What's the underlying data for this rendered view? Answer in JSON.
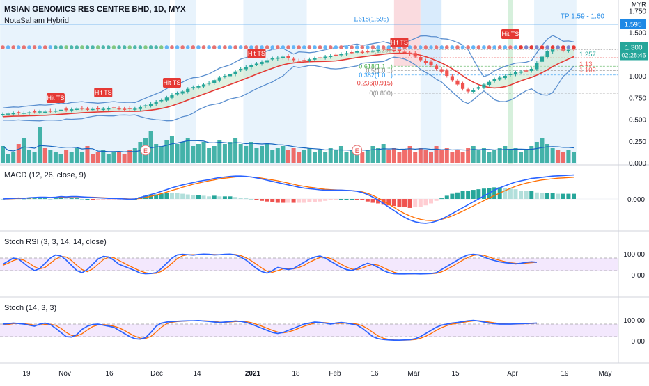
{
  "header": {
    "symbol_title": "MSIAN GENOMICS RES CENTRE BHD, 1D, MYX",
    "indicator_title": "NotaSaham Hybrid"
  },
  "annotations": {
    "tp_label": "TP 1.59 - 1.60",
    "fib_top_label": "1.618(1.595)",
    "hit_ts_label": "Hit TS",
    "earnings_marker": "E",
    "pivot_label": "1(1.299)"
  },
  "price_scale": {
    "currency": "MYR",
    "ticks": [
      "1.750",
      "1.500",
      "1.000",
      "0.750",
      "0.500",
      "0.250",
      "0.000"
    ],
    "current_price": "1.300",
    "countdown": "02:28:46",
    "level_1595": "1.595",
    "level_1257": "1.257",
    "level_113": "1.13",
    "level_1102": "1.102"
  },
  "fib_levels": [
    "0.618(1.1...)",
    "0.5(1.0...)",
    "0.382(1.0...)",
    "0.236(0.915)",
    "0(0.800)"
  ],
  "colors": {
    "up": "#26a69a",
    "down": "#ef5350",
    "macd": "#2962ff",
    "signal": "#ff6d00",
    "resistance": "#1e88e5",
    "bb_band": "#5b8fcf",
    "ts_line": "#e53935",
    "bg_zone": "#e3f2fd",
    "sell_zone": "#f8bbd0",
    "pane_fill": "#f3e8fd"
  },
  "chart_data": [
    {
      "type": "candlestick",
      "title": "MSIAN GENOMICS RES CENTRE BHD, 1D, MYX",
      "ylabel": "MYR",
      "ylim": [
        0,
        1.8
      ],
      "x_ticks": [
        "19",
        "Nov",
        "16",
        "Dec",
        "14",
        "2021",
        "18",
        "Feb",
        "16",
        "Mar",
        "15",
        "Apr",
        "19",
        "May"
      ],
      "close": [
        0.56,
        0.565,
        0.57,
        0.568,
        0.575,
        0.58,
        0.585,
        0.59,
        0.588,
        0.592,
        0.6,
        0.61,
        0.605,
        0.615,
        0.62,
        0.625,
        0.62,
        0.618,
        0.615,
        0.62,
        0.625,
        0.63,
        0.625,
        0.62,
        0.618,
        0.622,
        0.64,
        0.66,
        0.68,
        0.7,
        0.72,
        0.75,
        0.78,
        0.8,
        0.82,
        0.85,
        0.87,
        0.88,
        0.9,
        0.92,
        0.95,
        0.98,
        1.0,
        1.02,
        1.05,
        1.08,
        1.1,
        1.12,
        1.14,
        1.16,
        1.18,
        1.2,
        1.21,
        1.22,
        1.2,
        1.18,
        1.17,
        1.18,
        1.19,
        1.2,
        1.21,
        1.22,
        1.23,
        1.24,
        1.25,
        1.26,
        1.27,
        1.28,
        1.27,
        1.28,
        1.29,
        1.3,
        1.31,
        1.3,
        1.29,
        1.28,
        1.27,
        1.25,
        1.22,
        1.18,
        1.15,
        1.12,
        1.08,
        1.05,
        1.0,
        0.95,
        0.9,
        0.85,
        0.82,
        0.84,
        0.87,
        0.9,
        0.93,
        0.96,
        0.98,
        1.0,
        1.02,
        1.04,
        1.05,
        1.06,
        1.08,
        1.15,
        1.22,
        1.28,
        1.32,
        1.31,
        1.29,
        1.3,
        1.3
      ],
      "volume": [
        0.08,
        0.04,
        0.05,
        0.09,
        0.12,
        0.06,
        0.05,
        0.17,
        0.07,
        0.06,
        0.05,
        0.04,
        0.06,
        0.05,
        0.07,
        0.05,
        0.08,
        0.04,
        0.05,
        0.06,
        0.04,
        0.05,
        0.05,
        0.04,
        0.06,
        0.07,
        0.1,
        0.12,
        0.15,
        0.09,
        0.08,
        0.11,
        0.13,
        0.09,
        0.1,
        0.12,
        0.08,
        0.09,
        0.1,
        0.07,
        0.08,
        0.11,
        0.09,
        0.1,
        0.12,
        0.09,
        0.08,
        0.1,
        0.07,
        0.08,
        0.09,
        0.06,
        0.07,
        0.08,
        0.06,
        0.07,
        0.05,
        0.06,
        0.07,
        0.05,
        0.06,
        0.05,
        0.07,
        0.06,
        0.08,
        0.05,
        0.06,
        0.07,
        0.05,
        0.06,
        0.08,
        0.07,
        0.09,
        0.06,
        0.07,
        0.05,
        0.06,
        0.08,
        0.05,
        0.07,
        0.06,
        0.05,
        0.08,
        0.06,
        0.07,
        0.05,
        0.06,
        0.05,
        0.07,
        0.08,
        0.06,
        0.07,
        0.05,
        0.06,
        0.07,
        0.08,
        0.06,
        0.07,
        0.05,
        0.06,
        0.08,
        0.1,
        0.12,
        0.09,
        0.07,
        0.06,
        0.05,
        0.06,
        0.05
      ],
      "series": [
        {
          "name": "Resistance",
          "values": [
            1.595
          ]
        },
        {
          "name": "Fibonacci 1.618",
          "values": [
            1.595
          ]
        },
        {
          "name": "Fibonacci 1",
          "values": [
            1.299
          ]
        },
        {
          "name": "Fibonacci 0.236",
          "values": [
            0.915
          ]
        },
        {
          "name": "Fibonacci 0",
          "values": [
            0.8
          ]
        }
      ]
    },
    {
      "type": "line",
      "title": "MACD (12, 26, close, 9)",
      "x_ticks": [
        "19",
        "Nov",
        "16",
        "Dec",
        "14",
        "2021",
        "18",
        "Feb",
        "16",
        "Mar",
        "15",
        "Apr",
        "19",
        "May"
      ],
      "y_ticks": [
        "0.000"
      ],
      "ylim": [
        -0.12,
        0.12
      ],
      "series": [
        {
          "name": "MACD",
          "values": [
            0.0,
            0.001,
            0.002,
            0.003,
            0.002,
            0.004,
            0.005,
            0.006,
            0.006,
            0.005,
            0.006,
            0.008,
            0.007,
            0.008,
            0.008,
            0.007,
            0.006,
            0.005,
            0.004,
            0.003,
            0.002,
            0.002,
            0.001,
            0.0,
            -0.001,
            0.0,
            0.005,
            0.01,
            0.015,
            0.02,
            0.026,
            0.032,
            0.038,
            0.043,
            0.048,
            0.052,
            0.056,
            0.06,
            0.063,
            0.066,
            0.07,
            0.073,
            0.075,
            0.077,
            0.078,
            0.078,
            0.077,
            0.075,
            0.072,
            0.068,
            0.064,
            0.06,
            0.056,
            0.052,
            0.048,
            0.044,
            0.04,
            0.037,
            0.035,
            0.033,
            0.031,
            0.03,
            0.03,
            0.03,
            0.03,
            0.029,
            0.028,
            0.026,
            0.022,
            0.015,
            0.006,
            -0.004,
            -0.016,
            -0.028,
            -0.04,
            -0.052,
            -0.063,
            -0.072,
            -0.078,
            -0.082,
            -0.083,
            -0.081,
            -0.076,
            -0.069,
            -0.06,
            -0.05,
            -0.04,
            -0.03,
            -0.02,
            -0.01,
            0.0,
            0.01,
            0.02,
            0.03,
            0.038,
            0.045,
            0.052,
            0.058,
            0.062,
            0.066,
            0.07,
            0.072,
            0.074,
            0.076,
            0.078,
            0.079,
            0.08,
            0.081,
            0.082
          ]
        },
        {
          "name": "Signal",
          "values": [
            0.0,
            0.0,
            0.001,
            0.002,
            0.002,
            0.003,
            0.004,
            0.005,
            0.005,
            0.005,
            0.005,
            0.006,
            0.006,
            0.007,
            0.007,
            0.007,
            0.006,
            0.006,
            0.005,
            0.004,
            0.003,
            0.003,
            0.002,
            0.001,
            0.0,
            0.0,
            0.002,
            0.005,
            0.009,
            0.013,
            0.018,
            0.023,
            0.029,
            0.034,
            0.04,
            0.045,
            0.05,
            0.054,
            0.058,
            0.062,
            0.065,
            0.069,
            0.071,
            0.073,
            0.075,
            0.076,
            0.076,
            0.075,
            0.074,
            0.071,
            0.068,
            0.065,
            0.062,
            0.058,
            0.054,
            0.05,
            0.046,
            0.043,
            0.04,
            0.038,
            0.035,
            0.033,
            0.032,
            0.031,
            0.03,
            0.029,
            0.028,
            0.027,
            0.024,
            0.019,
            0.012,
            0.003,
            -0.007,
            -0.018,
            -0.029,
            -0.04,
            -0.05,
            -0.058,
            -0.065,
            -0.07,
            -0.073,
            -0.074,
            -0.073,
            -0.07,
            -0.065,
            -0.058,
            -0.05,
            -0.042,
            -0.033,
            -0.024,
            -0.015,
            -0.006,
            0.003,
            0.012,
            0.02,
            0.028,
            0.036,
            0.043,
            0.049,
            0.054,
            0.058,
            0.062,
            0.065,
            0.067,
            0.069,
            0.071,
            0.072,
            0.073,
            0.074
          ]
        }
      ]
    },
    {
      "type": "line",
      "title": "Stoch RSI (3, 3, 14, 14, close)",
      "x_ticks": [
        "19",
        "Nov",
        "16",
        "Dec",
        "14",
        "2021",
        "18",
        "Feb",
        "16",
        "Mar",
        "15",
        "Apr",
        "19",
        "May"
      ],
      "y_ticks": [
        "100.00",
        "0.00"
      ],
      "ylim": [
        -20,
        120
      ],
      "series": [
        {
          "name": "K",
          "values": [
            50,
            65,
            80,
            75,
            55,
            35,
            20,
            30,
            55,
            80,
            95,
            90,
            70,
            45,
            20,
            10,
            25,
            50,
            75,
            88,
            85,
            70,
            50,
            40,
            30,
            20,
            8,
            5,
            6,
            10,
            30,
            55,
            80,
            95,
            98,
            96,
            94,
            97,
            99,
            98,
            95,
            96,
            98,
            99,
            95,
            85,
            70,
            50,
            30,
            15,
            8,
            20,
            35,
            30,
            25,
            30,
            45,
            60,
            75,
            85,
            90,
            80,
            65,
            50,
            35,
            25,
            20,
            30,
            45,
            55,
            48,
            35,
            20,
            10,
            5,
            4,
            4,
            5,
            5,
            4,
            5,
            6,
            10,
            25,
            40,
            55,
            70,
            85,
            95,
            98,
            95,
            85,
            75,
            68,
            62,
            58,
            55,
            52,
            55,
            60,
            62,
            60
          ]
        },
        {
          "name": "D",
          "values": [
            45,
            55,
            68,
            76,
            70,
            55,
            38,
            28,
            35,
            55,
            75,
            88,
            85,
            68,
            45,
            25,
            15,
            28,
            50,
            72,
            85,
            82,
            68,
            55,
            42,
            30,
            18,
            10,
            6,
            7,
            16,
            33,
            55,
            77,
            91,
            96,
            96,
            96,
            97,
            98,
            97,
            96,
            97,
            98,
            97,
            92,
            82,
            67,
            50,
            32,
            17,
            12,
            20,
            28,
            30,
            28,
            35,
            45,
            60,
            72,
            83,
            85,
            78,
            65,
            50,
            37,
            27,
            25,
            32,
            43,
            50,
            46,
            34,
            22,
            12,
            6,
            4,
            4,
            5,
            5,
            5,
            5,
            7,
            14,
            26,
            40,
            55,
            70,
            83,
            93,
            96,
            93,
            85,
            76,
            69,
            63,
            58,
            55,
            54,
            56,
            58,
            60
          ]
        }
      ]
    },
    {
      "type": "line",
      "title": "Stoch (14, 3, 3)",
      "x_ticks": [
        "19",
        "Nov",
        "16",
        "Dec",
        "14",
        "2021",
        "18",
        "Feb",
        "16",
        "Mar",
        "15",
        "Apr",
        "19",
        "May"
      ],
      "y_ticks": [
        "100.00",
        "0.00"
      ],
      "ylim": [
        -20,
        120
      ],
      "series": [
        {
          "name": "K",
          "values": [
            80,
            82,
            85,
            83,
            80,
            75,
            70,
            80,
            85,
            78,
            60,
            40,
            20,
            18,
            30,
            55,
            70,
            78,
            80,
            75,
            70,
            65,
            50,
            35,
            20,
            10,
            8,
            15,
            40,
            70,
            85,
            90,
            92,
            94,
            95,
            96,
            96,
            97,
            95,
            93,
            90,
            88,
            90,
            92,
            95,
            93,
            88,
            80,
            70,
            60,
            50,
            40,
            35,
            40,
            50,
            60,
            70,
            80,
            85,
            90,
            88,
            85,
            80,
            85,
            88,
            85,
            80,
            75,
            60,
            40,
            20,
            10,
            6,
            4,
            3,
            3,
            4,
            5,
            10,
            20,
            35,
            50,
            65,
            75,
            80,
            85,
            88,
            92,
            96,
            98,
            95,
            90,
            85,
            82,
            80,
            80,
            80,
            81,
            82,
            83,
            84,
            85
          ]
        },
        {
          "name": "D",
          "values": [
            75,
            78,
            82,
            83,
            82,
            79,
            75,
            75,
            78,
            80,
            74,
            60,
            40,
            26,
            23,
            34,
            52,
            68,
            76,
            78,
            75,
            70,
            62,
            50,
            35,
            22,
            13,
            11,
            21,
            42,
            65,
            82,
            89,
            92,
            94,
            95,
            96,
            96,
            96,
            95,
            93,
            90,
            89,
            90,
            92,
            93,
            92,
            87,
            79,
            70,
            60,
            50,
            42,
            38,
            42,
            50,
            60,
            70,
            78,
            85,
            88,
            87,
            84,
            83,
            84,
            85,
            84,
            80,
            72,
            58,
            40,
            23,
            12,
            7,
            4,
            3,
            3,
            4,
            6,
            12,
            22,
            35,
            50,
            63,
            73,
            80,
            84,
            88,
            92,
            95,
            96,
            94,
            90,
            86,
            83,
            81,
            80,
            80,
            81,
            82,
            83,
            84
          ]
        }
      ]
    }
  ]
}
